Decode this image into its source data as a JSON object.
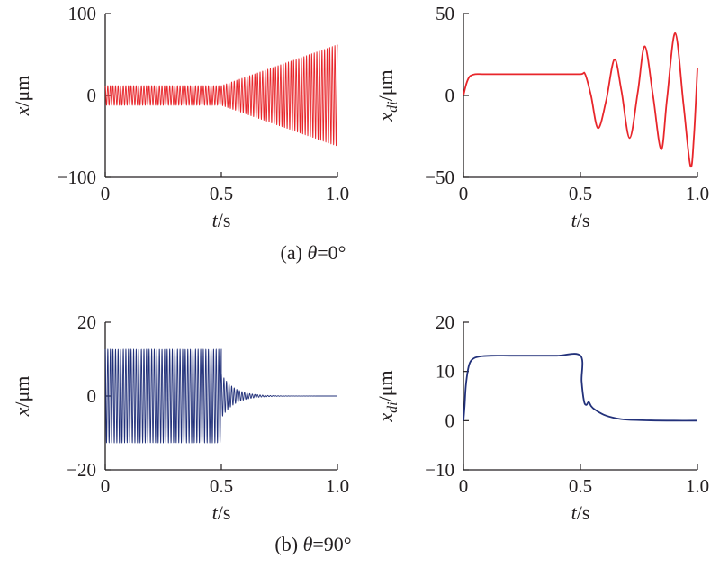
{
  "captions": [
    {
      "prefix": "(a) ",
      "symbol": "θ",
      "rest": "=0°"
    },
    {
      "prefix": "(b) ",
      "symbol": "θ",
      "rest": "=90°"
    }
  ],
  "chart_data": [
    {
      "id": "a-left",
      "type": "line",
      "ylabel": {
        "var": "x",
        "unit": "/μm"
      },
      "xlabel": {
        "var": "t",
        "unit": "/s"
      },
      "xlim": [
        0,
        1.0
      ],
      "ylim": [
        -100,
        100
      ],
      "xticks": [
        0,
        0.5,
        1.0
      ],
      "xtick_labels": [
        "0",
        "0.5",
        "1.0"
      ],
      "yticks": [
        -100,
        0,
        100
      ],
      "ytick_labels": [
        "−100",
        "0",
        "100"
      ],
      "color": "#e8262b",
      "series": [
        {
          "kind": "oscillation",
          "segments": [
            {
              "t0": 0,
              "t1": 0.5,
              "amp_start": 12,
              "amp_end": 12,
              "offset": 0
            },
            {
              "t0": 0.5,
              "t1": 1.0,
              "amp_start": 12,
              "amp_end": 62,
              "offset": 0
            }
          ],
          "freq": 90
        }
      ]
    },
    {
      "id": "a-right",
      "type": "line",
      "ylabel": {
        "var": "x",
        "sub": "di",
        "unit": "/μm"
      },
      "xlabel": {
        "var": "t",
        "unit": "/s"
      },
      "xlim": [
        0,
        1.0
      ],
      "ylim": [
        -50,
        50
      ],
      "xticks": [
        0,
        0.5,
        1.0
      ],
      "xtick_labels": [
        "0",
        "0.5",
        "1.0"
      ],
      "yticks": [
        -50,
        0,
        50
      ],
      "ytick_labels": [
        "−50",
        "0",
        "50"
      ],
      "color": "#e8262b",
      "series": [
        {
          "x": [
            0,
            0.01,
            0.02,
            0.03,
            0.05,
            0.08,
            0.12,
            0.2,
            0.3,
            0.4,
            0.5,
            0.52,
            0.545,
            0.575,
            0.61,
            0.645,
            0.675,
            0.71,
            0.745,
            0.775,
            0.81,
            0.845,
            0.87,
            0.905,
            0.94,
            0.97,
            0.985,
            1.0
          ],
          "y": [
            0,
            6,
            10,
            12,
            13,
            13,
            13,
            13,
            13,
            13,
            13,
            13,
            0,
            -20,
            -3,
            22,
            3,
            -26,
            2,
            30,
            0,
            -33,
            -2,
            38,
            -5,
            -43,
            -25,
            17
          ]
        }
      ]
    },
    {
      "id": "b-left",
      "type": "line",
      "ylabel": {
        "var": "x",
        "unit": "/μm"
      },
      "xlabel": {
        "var": "t",
        "unit": "/s"
      },
      "xlim": [
        0,
        1.0
      ],
      "ylim": [
        -20,
        20
      ],
      "xticks": [
        0,
        0.5,
        1.0
      ],
      "xtick_labels": [
        "0",
        "0.5",
        "1.0"
      ],
      "yticks": [
        -20,
        0,
        20
      ],
      "ytick_labels": [
        "−20",
        "0",
        "20"
      ],
      "color": "#22317a",
      "series": [
        {
          "kind": "oscillation",
          "segments": [
            {
              "t0": 0,
              "t1": 0.5,
              "amp_start": 12.7,
              "amp_end": 12.7,
              "offset": 0
            },
            {
              "t0": 0.5,
              "t1": 1.0,
              "amp_start": 6,
              "amp_end": 0,
              "offset": 0,
              "decay": 18
            }
          ],
          "freq": 90
        }
      ]
    },
    {
      "id": "b-right",
      "type": "line",
      "ylabel": {
        "var": "x",
        "sub": "di",
        "unit": "/μm"
      },
      "xlabel": {
        "var": "t",
        "unit": "/s"
      },
      "xlim": [
        0,
        1.0
      ],
      "ylim": [
        -10,
        20
      ],
      "xticks": [
        0,
        0.5,
        1.0
      ],
      "xtick_labels": [
        "0",
        "0.5",
        "1.0"
      ],
      "yticks": [
        -10,
        0,
        10,
        20
      ],
      "ytick_labels": [
        "−10",
        "0",
        "10",
        "20"
      ],
      "color": "#22317a",
      "series": [
        {
          "x": [
            0,
            0.005,
            0.01,
            0.02,
            0.03,
            0.05,
            0.08,
            0.12,
            0.2,
            0.3,
            0.4,
            0.5,
            0.505,
            0.515,
            0.525,
            0.535,
            0.545,
            0.56,
            0.6,
            0.65,
            0.7,
            0.8,
            0.9,
            1.0
          ],
          "y": [
            0,
            3,
            7,
            10.5,
            12,
            12.8,
            13.1,
            13.2,
            13.2,
            13.2,
            13.2,
            13.2,
            8,
            4,
            3.2,
            3.8,
            3,
            2.3,
            1.2,
            0.5,
            0.2,
            0.05,
            0,
            0
          ]
        }
      ]
    }
  ]
}
